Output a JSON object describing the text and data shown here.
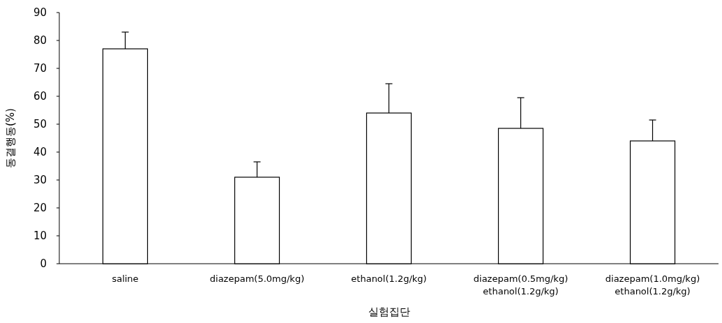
{
  "chart_data": {
    "type": "bar",
    "xlabel": "실험집단",
    "ylabel": "동결행동(%)",
    "categories": [
      "saline",
      "diazepam(5.0mg/kg)",
      "ethanol(1.2g/kg)",
      "diazepam(0.5mg/kg)\nethanol(1.2g/kg)",
      "diazepam(1.0mg/kg)\nethanol(1.2g/kg)"
    ],
    "values": [
      77,
      31,
      54,
      48.5,
      44
    ],
    "errors": [
      [
        77,
        83
      ],
      [
        31,
        36.5
      ],
      [
        54,
        64.5
      ],
      [
        48.5,
        59.5
      ],
      [
        44,
        51.5
      ]
    ],
    "color": "#ffffff",
    "ylim": [
      0,
      90
    ],
    "yticks": [
      0,
      10,
      20,
      30,
      40,
      50,
      60,
      70,
      80,
      90
    ]
  }
}
